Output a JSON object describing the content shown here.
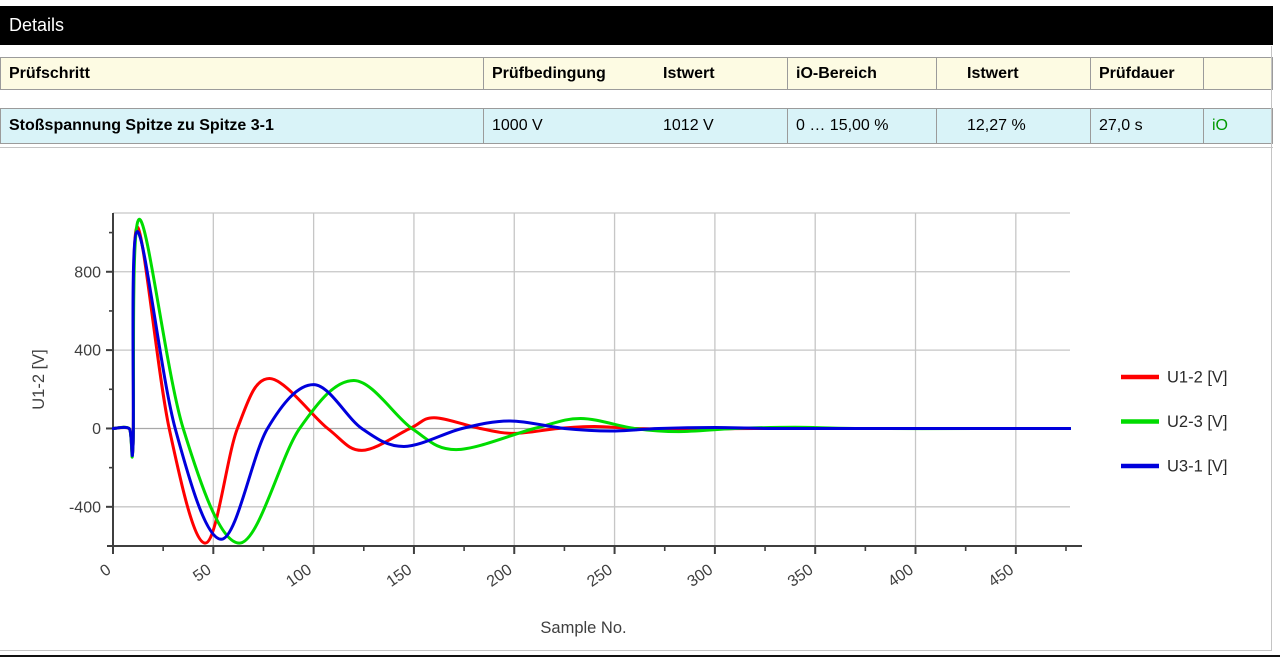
{
  "title_bar": {
    "label": "Details",
    "bg": "#000000",
    "fg": "#FFFFFF"
  },
  "table": {
    "header_bg": "#FDFBE3",
    "row_bg": "#D9F3F8",
    "border_color": "#9B9B9B",
    "status_color": "#009900",
    "columns": [
      {
        "label": "Prüfschritt"
      },
      {
        "label": "Prüfbedingung"
      },
      {
        "label": "Istwert"
      },
      {
        "label": "iO-Bereich"
      },
      {
        "label": "Istwert"
      },
      {
        "label": "Prüfdauer"
      },
      {
        "label": ""
      }
    ],
    "row": {
      "cells": [
        "Stoßspannung Spitze zu Spitze 3-1",
        "1000 V",
        "1012 V",
        "0 … 15,00 %",
        "12,27 %",
        "27,0 s",
        "iO"
      ]
    }
  },
  "chart_data": {
    "type": "line",
    "title": "",
    "xlabel": "Sample No.",
    "ylabel": "U1-2 [V]",
    "xlim": [
      0,
      477
    ],
    "ylim": [
      -600,
      1100
    ],
    "x_major_ticks": [
      0,
      50,
      100,
      150,
      200,
      250,
      300,
      350,
      400,
      450
    ],
    "x_minor_ticks": [
      25,
      75,
      125,
      175,
      225,
      275,
      325,
      375,
      425,
      475
    ],
    "y_gridlines": [
      -400,
      0,
      400,
      800
    ],
    "y_minor_ticks": [
      -600,
      -200,
      200,
      600,
      1000
    ],
    "grid": true,
    "legend_position": "right",
    "axis_color": "#3F3F3F",
    "grid_color": "#C6C6C6",
    "zero_line_color": "#A8A8A8",
    "label_color": "#3F3F3F",
    "series": [
      {
        "name": "U1-2 [V]",
        "color": "#FF0000",
        "keypoints": [
          [
            0,
            0
          ],
          [
            8,
            0
          ],
          [
            10,
            -75
          ],
          [
            12,
            1028
          ],
          [
            28,
            0
          ],
          [
            46,
            -585
          ],
          [
            62,
            0
          ],
          [
            78,
            255
          ],
          [
            107,
            0
          ],
          [
            124,
            -112
          ],
          [
            148,
            0
          ],
          [
            160,
            55
          ],
          [
            183,
            0
          ],
          [
            200,
            -25
          ],
          [
            222,
            0
          ],
          [
            240,
            10
          ],
          [
            260,
            0
          ],
          [
            290,
            -4
          ],
          [
            320,
            0
          ],
          [
            400,
            0
          ],
          [
            477,
            0
          ]
        ]
      },
      {
        "name": "U2-3 [V]",
        "color": "#00DC00",
        "keypoints": [
          [
            0,
            0
          ],
          [
            8,
            0
          ],
          [
            10,
            -82
          ],
          [
            13,
            1068
          ],
          [
            35,
            0
          ],
          [
            63,
            -585
          ],
          [
            93,
            0
          ],
          [
            120,
            245
          ],
          [
            149,
            0
          ],
          [
            171,
            -108
          ],
          [
            210,
            0
          ],
          [
            233,
            51
          ],
          [
            260,
            0
          ],
          [
            282,
            -16
          ],
          [
            310,
            0
          ],
          [
            340,
            6
          ],
          [
            370,
            0
          ],
          [
            430,
            0
          ],
          [
            477,
            0
          ]
        ]
      },
      {
        "name": "U3-1 [V]",
        "color": "#0000DC",
        "keypoints": [
          [
            0,
            0
          ],
          [
            8,
            0
          ],
          [
            10,
            -78
          ],
          [
            12,
            1005
          ],
          [
            31,
            0
          ],
          [
            54,
            -566
          ],
          [
            77,
            0
          ],
          [
            100,
            224
          ],
          [
            124,
            0
          ],
          [
            145,
            -92
          ],
          [
            174,
            0
          ],
          [
            198,
            38
          ],
          [
            225,
            0
          ],
          [
            248,
            -13
          ],
          [
            272,
            0
          ],
          [
            300,
            5
          ],
          [
            330,
            0
          ],
          [
            400,
            0
          ],
          [
            477,
            0
          ]
        ]
      }
    ]
  }
}
